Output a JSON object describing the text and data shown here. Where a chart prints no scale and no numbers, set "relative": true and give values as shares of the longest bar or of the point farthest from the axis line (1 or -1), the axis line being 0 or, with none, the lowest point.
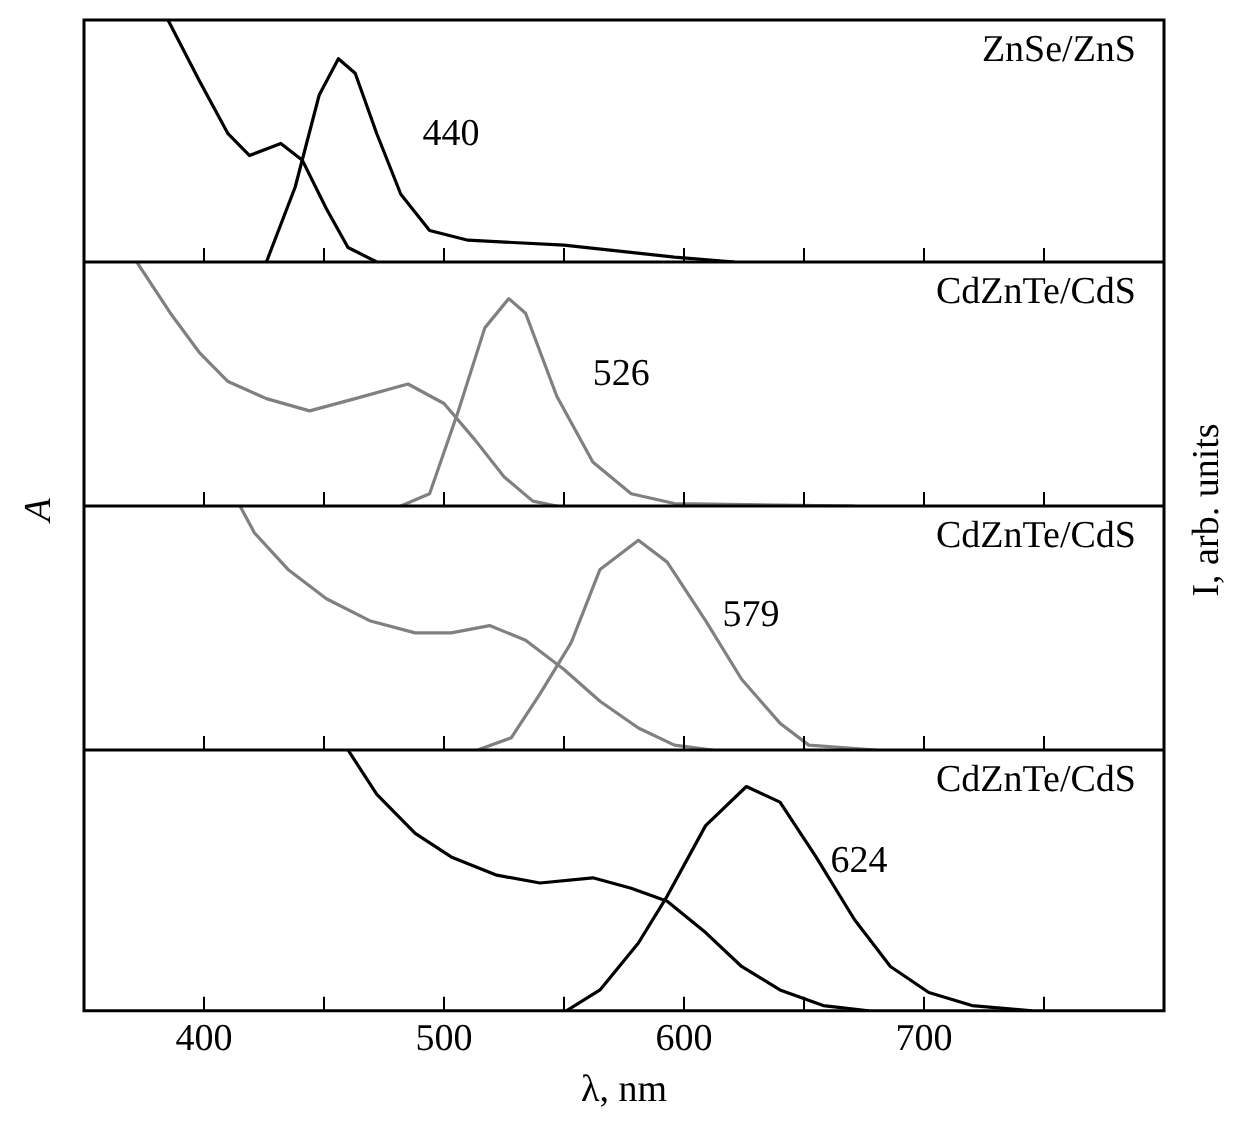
{
  "chart_data": [
    {
      "type": "line",
      "title": "ZnSe/ZnS",
      "relative": true,
      "xlim": [
        350,
        800
      ],
      "xticks": [
        400,
        {
          "value": 450,
          "label": null
        },
        500,
        {
          "value": 550,
          "label": null
        },
        600,
        {
          "value": 650,
          "label": null
        },
        700,
        {
          "value": 750,
          "label": null
        }
      ],
      "tick_labels": false,
      "series": [
        {
          "color": "#000000",
          "x": [
            385,
            398,
            410,
            419,
            432,
            441,
            451,
            460,
            472
          ],
          "values": [
            1.0,
            0.75,
            0.53,
            0.44,
            0.49,
            0.42,
            0.22,
            0.06,
            0
          ]
        },
        {
          "color": "#000000",
          "x": [
            426,
            438,
            448,
            456,
            463,
            472,
            482,
            494,
            510,
            550,
            596,
            621
          ],
          "values": [
            0,
            0.31,
            0.69,
            0.84,
            0.78,
            0.53,
            0.28,
            0.13,
            0.09,
            0.07,
            0.02,
            0
          ]
        }
      ],
      "annotations": [
        "440"
      ]
    },
    {
      "type": "line",
      "title": "CdZnTe/CdS",
      "relative": true,
      "xlim": [
        350,
        800
      ],
      "xticks": [
        400,
        {
          "value": 450,
          "label": null
        },
        500,
        {
          "value": 550,
          "label": null
        },
        600,
        {
          "value": 650,
          "label": null
        },
        700,
        {
          "value": 750,
          "label": null
        }
      ],
      "tick_labels": false,
      "ylabel": "A",
      "y2label": "I, arb. units",
      "series": [
        {
          "color": "#808080",
          "x": [
            372,
            386,
            398,
            410,
            426,
            444,
            463,
            485,
            500,
            513,
            525,
            537,
            547
          ],
          "values": [
            1.0,
            0.79,
            0.63,
            0.51,
            0.44,
            0.39,
            0.44,
            0.5,
            0.42,
            0.27,
            0.12,
            0.02,
            0
          ]
        },
        {
          "color": "#808080",
          "x": [
            482,
            494,
            506,
            517,
            527,
            534,
            547,
            562,
            578,
            596,
            671
          ],
          "values": [
            0,
            0.05,
            0.39,
            0.73,
            0.85,
            0.79,
            0.45,
            0.18,
            0.05,
            0.01,
            0
          ]
        }
      ],
      "annotations": [
        "526"
      ]
    },
    {
      "type": "line",
      "title": "CdZnTe/CdS",
      "relative": true,
      "xlim": [
        350,
        800
      ],
      "xticks": [
        400,
        {
          "value": 450,
          "label": null
        },
        500,
        {
          "value": 550,
          "label": null
        },
        600,
        {
          "value": 650,
          "label": null
        },
        700,
        {
          "value": 750,
          "label": null
        }
      ],
      "tick_labels": false,
      "series": [
        {
          "color": "#808080",
          "x": [
            415,
            421,
            435,
            451,
            469,
            488,
            503,
            519,
            534,
            550,
            565,
            581,
            596,
            612
          ],
          "values": [
            1.0,
            0.89,
            0.74,
            0.62,
            0.53,
            0.48,
            0.48,
            0.51,
            0.45,
            0.33,
            0.2,
            0.09,
            0.02,
            0
          ]
        },
        {
          "color": "#808080",
          "x": [
            514,
            528,
            540,
            553,
            565,
            581,
            593,
            609,
            624,
            640,
            652,
            680
          ],
          "values": [
            0,
            0.05,
            0.23,
            0.44,
            0.74,
            0.86,
            0.77,
            0.53,
            0.29,
            0.11,
            0.02,
            0
          ]
        }
      ],
      "annotations": [
        "579"
      ]
    },
    {
      "type": "line",
      "title": "CdZnTe/CdS",
      "relative": true,
      "xlim": [
        350,
        800
      ],
      "xticks": [
        400,
        {
          "value": 450,
          "label": null
        },
        500,
        {
          "value": 550,
          "label": null
        },
        600,
        {
          "value": 650,
          "label": null
        },
        700,
        {
          "value": 750,
          "label": null
        }
      ],
      "tick_labels": "x",
      "xlabel": "λ, nm",
      "series": [
        {
          "color": "#000000",
          "x": [
            460,
            472,
            488,
            503,
            522,
            540,
            562,
            578,
            593,
            609,
            624,
            640,
            658,
            677
          ],
          "values": [
            1.0,
            0.83,
            0.68,
            0.59,
            0.52,
            0.49,
            0.51,
            0.47,
            0.42,
            0.3,
            0.17,
            0.08,
            0.02,
            0
          ]
        },
        {
          "color": "#000000",
          "x": [
            551,
            565,
            581,
            593,
            609,
            626,
            640,
            655,
            671,
            686,
            702,
            720,
            745
          ],
          "values": [
            0,
            0.08,
            0.26,
            0.44,
            0.71,
            0.86,
            0.8,
            0.59,
            0.35,
            0.17,
            0.07,
            0.02,
            0
          ]
        }
      ],
      "annotations": [
        "624"
      ]
    }
  ]
}
